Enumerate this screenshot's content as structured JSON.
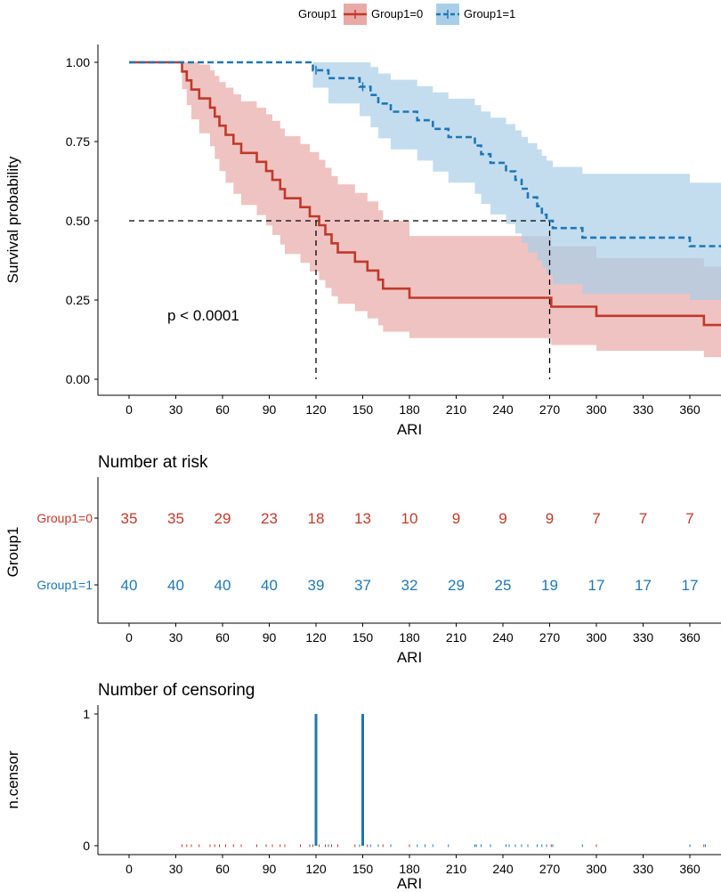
{
  "chart_data": [
    {
      "type": "line",
      "subtype": "kaplan-meier",
      "xlabel": "ARI",
      "ylabel": "Survival probability",
      "xlim": [
        -20,
        380
      ],
      "ylim": [
        0,
        1
      ],
      "xticks": [
        0,
        30,
        60,
        90,
        120,
        150,
        180,
        210,
        240,
        270,
        300,
        330,
        360
      ],
      "yticks": [
        0,
        0.25,
        0.5,
        0.75,
        1
      ],
      "ytick_labels": [
        "0.00",
        "0.25",
        "0.50",
        "0.75",
        "1.00"
      ],
      "legend": {
        "title": "Group1",
        "position": "top",
        "entries": [
          "Group1=0",
          "Group1=1"
        ]
      },
      "annotation": "p < 0.0001",
      "median_lines": [
        {
          "x": 120,
          "y": 0.5
        },
        {
          "x": 270,
          "y": 0.5
        }
      ],
      "series": [
        {
          "name": "Group1=0",
          "color": "#c0392b",
          "band_color": "#e8aaa6",
          "line_style": "solid",
          "steps": [
            [
              0,
              1.0
            ],
            [
              34,
              0.971
            ],
            [
              37,
              0.943
            ],
            [
              40,
              0.914
            ],
            [
              45,
              0.886
            ],
            [
              52,
              0.857
            ],
            [
              55,
              0.829
            ],
            [
              58,
              0.8
            ],
            [
              62,
              0.771
            ],
            [
              67,
              0.743
            ],
            [
              72,
              0.714
            ],
            [
              82,
              0.686
            ],
            [
              88,
              0.657
            ],
            [
              92,
              0.629
            ],
            [
              97,
              0.6
            ],
            [
              100,
              0.571
            ],
            [
              110,
              0.543
            ],
            [
              116,
              0.514
            ],
            [
              122,
              0.486
            ],
            [
              126,
              0.457
            ],
            [
              130,
              0.429
            ],
            [
              134,
              0.4
            ],
            [
              145,
              0.371
            ],
            [
              153,
              0.343
            ],
            [
              160,
              0.314
            ],
            [
              163,
              0.286
            ],
            [
              180,
              0.257
            ],
            [
              271,
              0.229
            ],
            [
              300,
              0.2
            ],
            [
              369,
              0.171
            ],
            [
              385,
              0.171
            ]
          ],
          "upper": [
            [
              0,
              1.0
            ],
            [
              34,
              1.0
            ],
            [
              37,
              1.0
            ],
            [
              40,
              1.0
            ],
            [
              45,
              0.993
            ],
            [
              52,
              0.975
            ],
            [
              55,
              0.957
            ],
            [
              58,
              0.938
            ],
            [
              62,
              0.92
            ],
            [
              67,
              0.899
            ],
            [
              72,
              0.877
            ],
            [
              82,
              0.857
            ],
            [
              88,
              0.836
            ],
            [
              92,
              0.815
            ],
            [
              97,
              0.791
            ],
            [
              100,
              0.767
            ],
            [
              110,
              0.742
            ],
            [
              116,
              0.717
            ],
            [
              122,
              0.692
            ],
            [
              126,
              0.667
            ],
            [
              130,
              0.641
            ],
            [
              134,
              0.615
            ],
            [
              145,
              0.588
            ],
            [
              153,
              0.561
            ],
            [
              160,
              0.533
            ],
            [
              163,
              0.5
            ],
            [
              180,
              0.452
            ],
            [
              271,
              0.419
            ],
            [
              300,
              0.382
            ],
            [
              369,
              0.355
            ],
            [
              385,
              0.355
            ]
          ],
          "lower": [
            [
              0,
              1.0
            ],
            [
              34,
              0.915
            ],
            [
              37,
              0.865
            ],
            [
              40,
              0.82
            ],
            [
              45,
              0.776
            ],
            [
              52,
              0.735
            ],
            [
              55,
              0.695
            ],
            [
              58,
              0.657
            ],
            [
              62,
              0.62
            ],
            [
              67,
              0.585
            ],
            [
              72,
              0.55
            ],
            [
              82,
              0.518
            ],
            [
              88,
              0.485
            ],
            [
              92,
              0.455
            ],
            [
              97,
              0.425
            ],
            [
              100,
              0.395
            ],
            [
              110,
              0.367
            ],
            [
              116,
              0.34
            ],
            [
              122,
              0.313
            ],
            [
              126,
              0.288
            ],
            [
              130,
              0.262
            ],
            [
              134,
              0.238
            ],
            [
              145,
              0.215
            ],
            [
              153,
              0.192
            ],
            [
              160,
              0.17
            ],
            [
              163,
              0.15
            ],
            [
              180,
              0.13
            ],
            [
              271,
              0.108
            ],
            [
              300,
              0.09
            ],
            [
              369,
              0.07
            ],
            [
              385,
              0.07
            ]
          ],
          "censor_ticks": []
        },
        {
          "name": "Group1=1",
          "color": "#1f77b4",
          "band_color": "#a9cfe8",
          "line_style": "dashed",
          "steps": [
            [
              0,
              1.0
            ],
            [
              118,
              0.975
            ],
            [
              128,
              0.95
            ],
            [
              148,
              0.923
            ],
            [
              155,
              0.897
            ],
            [
              160,
              0.87
            ],
            [
              168,
              0.844
            ],
            [
              185,
              0.817
            ],
            [
              195,
              0.79
            ],
            [
              205,
              0.764
            ],
            [
              222,
              0.737
            ],
            [
              226,
              0.71
            ],
            [
              232,
              0.683
            ],
            [
              242,
              0.656
            ],
            [
              248,
              0.629
            ],
            [
              252,
              0.601
            ],
            [
              256,
              0.574
            ],
            [
              262,
              0.546
            ],
            [
              265,
              0.519
            ],
            [
              268,
              0.5
            ],
            [
              272,
              0.477
            ],
            [
              291,
              0.447
            ],
            [
              360,
              0.42
            ],
            [
              385,
              0.42
            ]
          ],
          "upper": [
            [
              0,
              1.0
            ],
            [
              118,
              1.0
            ],
            [
              128,
              1.0
            ],
            [
              148,
              1.0
            ],
            [
              155,
              0.985
            ],
            [
              160,
              0.965
            ],
            [
              168,
              0.945
            ],
            [
              185,
              0.925
            ],
            [
              195,
              0.905
            ],
            [
              205,
              0.885
            ],
            [
              222,
              0.865
            ],
            [
              226,
              0.845
            ],
            [
              232,
              0.825
            ],
            [
              242,
              0.805
            ],
            [
              248,
              0.785
            ],
            [
              252,
              0.765
            ],
            [
              256,
              0.745
            ],
            [
              262,
              0.725
            ],
            [
              265,
              0.705
            ],
            [
              268,
              0.69
            ],
            [
              272,
              0.67
            ],
            [
              291,
              0.648
            ],
            [
              360,
              0.62
            ],
            [
              385,
              0.62
            ]
          ],
          "lower": [
            [
              0,
              1.0
            ],
            [
              118,
              0.92
            ],
            [
              128,
              0.87
            ],
            [
              148,
              0.83
            ],
            [
              155,
              0.795
            ],
            [
              160,
              0.76
            ],
            [
              168,
              0.725
            ],
            [
              185,
              0.69
            ],
            [
              195,
              0.655
            ],
            [
              205,
              0.62
            ],
            [
              222,
              0.585
            ],
            [
              226,
              0.553
            ],
            [
              232,
              0.52
            ],
            [
              242,
              0.49
            ],
            [
              248,
              0.46
            ],
            [
              252,
              0.43
            ],
            [
              256,
              0.4
            ],
            [
              262,
              0.375
            ],
            [
              265,
              0.352
            ],
            [
              268,
              0.33
            ],
            [
              272,
              0.3
            ],
            [
              291,
              0.27
            ],
            [
              360,
              0.25
            ],
            [
              385,
              0.25
            ]
          ],
          "censor_ticks": [
            {
              "x": 120,
              "y": 0.975
            },
            {
              "x": 150,
              "y": 0.923
            }
          ]
        }
      ]
    },
    {
      "type": "table",
      "title": "Number at risk",
      "xlabel": "ARI",
      "ylabel": "Group1",
      "xlim": [
        -20,
        380
      ],
      "xticks": [
        0,
        30,
        60,
        90,
        120,
        150,
        180,
        210,
        240,
        270,
        300,
        330,
        360
      ],
      "rows": [
        {
          "name": "Group1=0",
          "color": "#c0392b",
          "values": [
            35,
            35,
            29,
            23,
            18,
            13,
            10,
            9,
            9,
            9,
            7,
            7,
            7
          ]
        },
        {
          "name": "Group1=1",
          "color": "#1f77b4",
          "values": [
            40,
            40,
            40,
            40,
            39,
            37,
            32,
            29,
            25,
            19,
            17,
            17,
            17
          ]
        }
      ]
    },
    {
      "type": "bar",
      "title": "Number of censoring",
      "xlabel": "ARI",
      "ylabel": "n.censor",
      "xlim": [
        -20,
        380
      ],
      "ylim": [
        0,
        1
      ],
      "xticks": [
        0,
        30,
        60,
        90,
        120,
        150,
        180,
        210,
        240,
        270,
        300,
        330,
        360
      ],
      "yticks": [
        0,
        1
      ],
      "bars": [
        {
          "x": 120,
          "value": 1,
          "color": "#1f77b4"
        },
        {
          "x": 150,
          "value": 1,
          "color": "#1f77b4"
        }
      ],
      "event_ticks": {
        "Group1=0": {
          "color": "#c0392b",
          "x": [
            34,
            37,
            40,
            45,
            52,
            55,
            58,
            62,
            67,
            72,
            82,
            88,
            92,
            97,
            100,
            110,
            116,
            122,
            126,
            130,
            134,
            145,
            153,
            160,
            163,
            180,
            271,
            300,
            369
          ]
        },
        "Group1=1": {
          "color": "#1f77b4",
          "x": [
            118,
            128,
            148,
            155,
            160,
            168,
            185,
            190,
            195,
            205,
            222,
            223,
            226,
            232,
            242,
            244,
            248,
            252,
            256,
            262,
            265,
            268,
            272,
            291,
            360,
            370
          ]
        }
      }
    }
  ]
}
